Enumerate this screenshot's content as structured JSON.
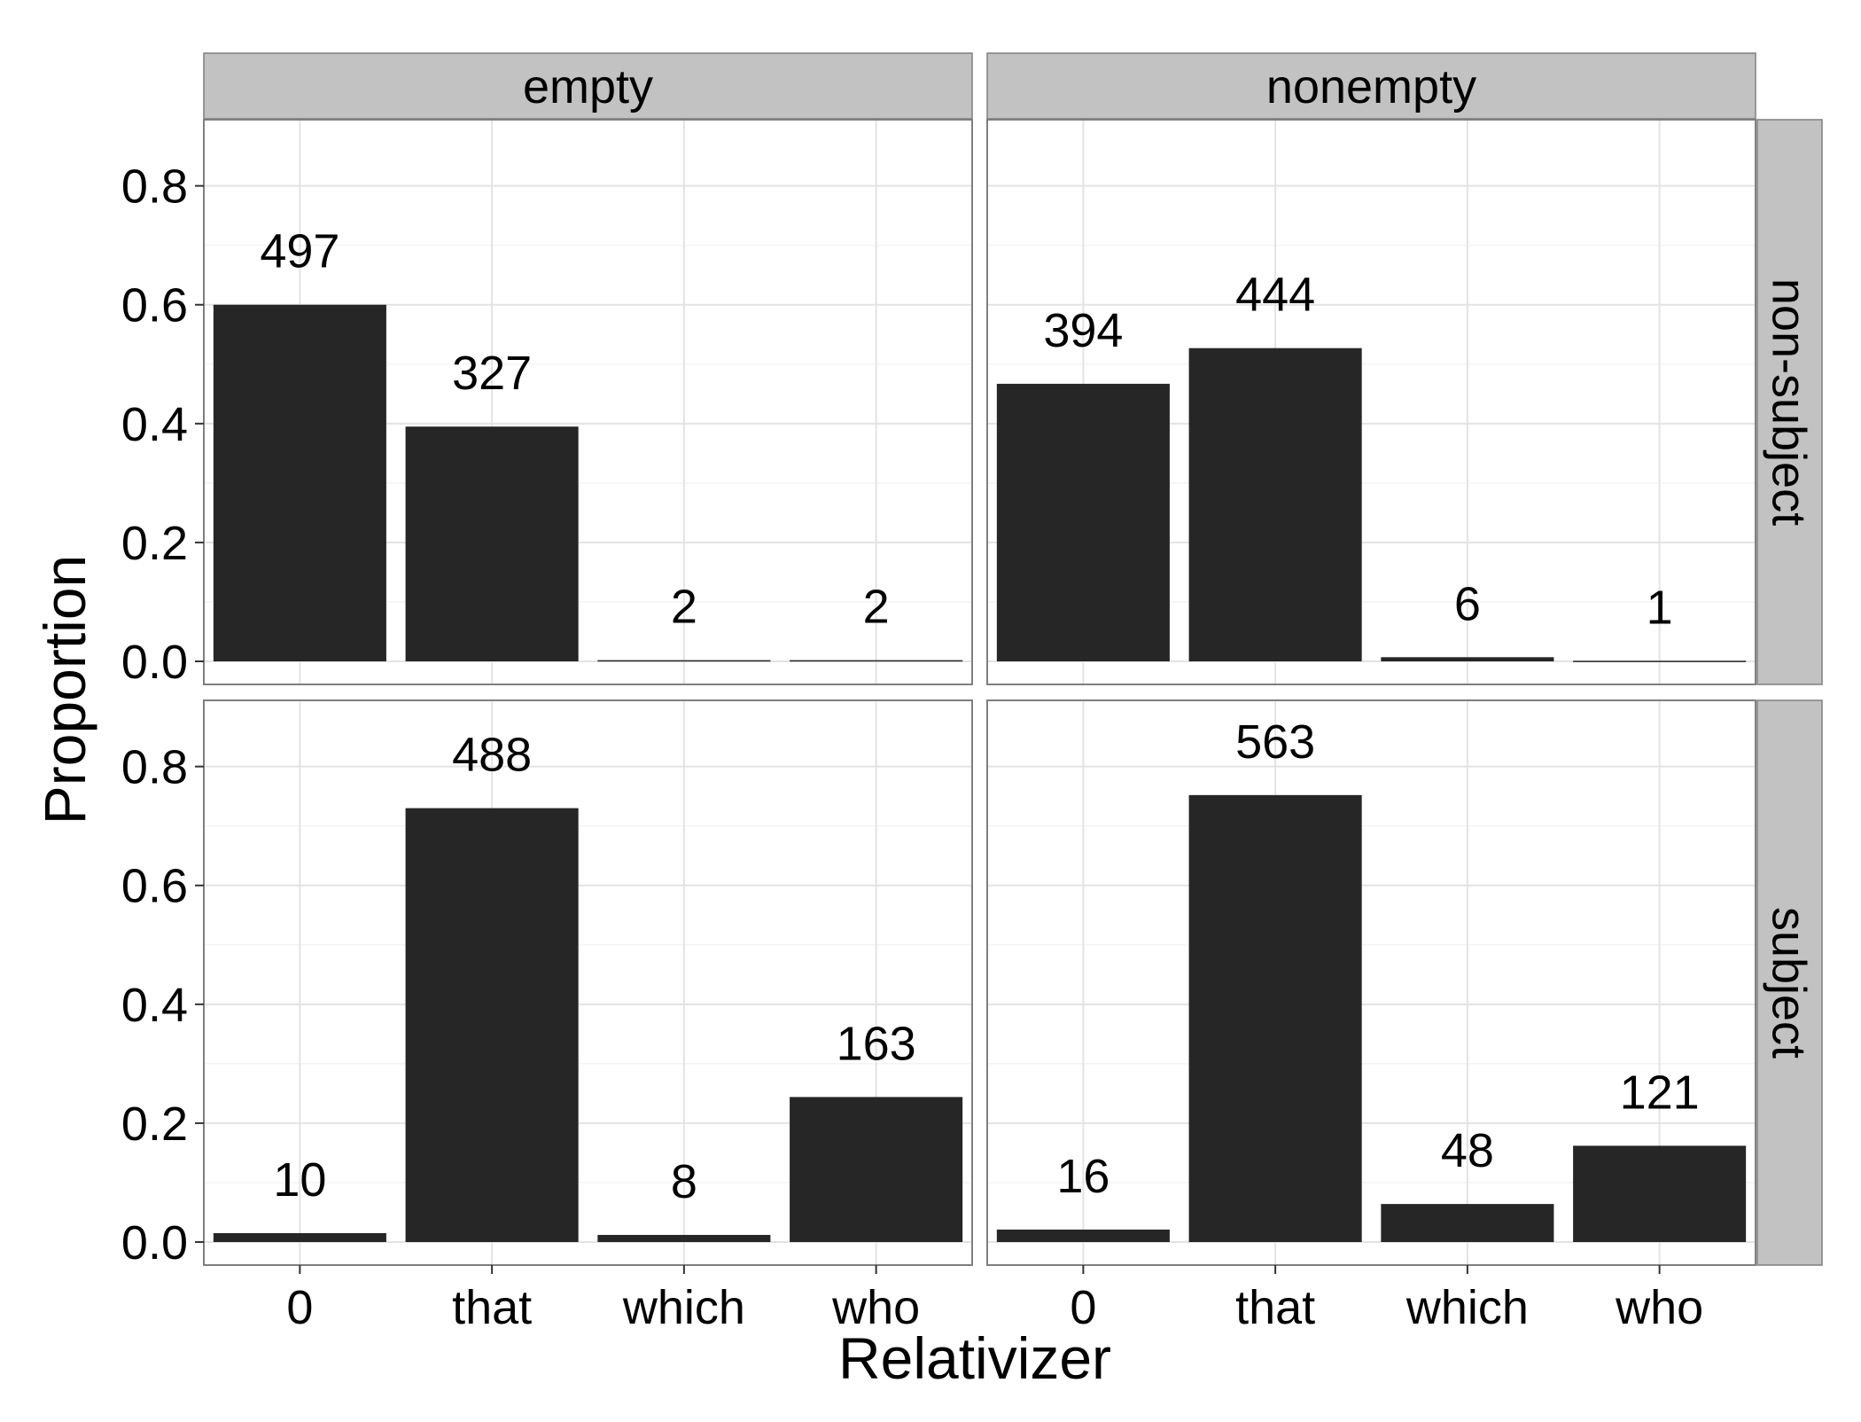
{
  "chart_data": {
    "type": "bar",
    "xlabel": "Relativizer",
    "ylabel": "Proportion",
    "categories": [
      "0",
      "that",
      "which",
      "who"
    ],
    "ylim": [
      0,
      0.88
    ],
    "yticks": [
      "0.0",
      "0.2",
      "0.4",
      "0.6",
      "0.8"
    ],
    "column_facets": [
      "empty",
      "nonempty"
    ],
    "row_facets": [
      "non-subject",
      "subject"
    ],
    "panels": [
      {
        "column": "empty",
        "row": "non-subject",
        "values": [
          0.6,
          0.395,
          0.002,
          0.002
        ],
        "labels": [
          "497",
          "327",
          "2",
          "2"
        ]
      },
      {
        "column": "nonempty",
        "row": "non-subject",
        "values": [
          0.467,
          0.527,
          0.007,
          0.001
        ],
        "labels": [
          "394",
          "444",
          "6",
          "1"
        ]
      },
      {
        "column": "empty",
        "row": "subject",
        "values": [
          0.015,
          0.73,
          0.012,
          0.244
        ],
        "labels": [
          "10",
          "488",
          "8",
          "163"
        ]
      },
      {
        "column": "nonempty",
        "row": "subject",
        "values": [
          0.021,
          0.752,
          0.064,
          0.162
        ],
        "labels": [
          "16",
          "563",
          "48",
          "121"
        ]
      }
    ],
    "grid": true,
    "bar_color": "#262626",
    "strip_color": "#c2c2c2"
  }
}
